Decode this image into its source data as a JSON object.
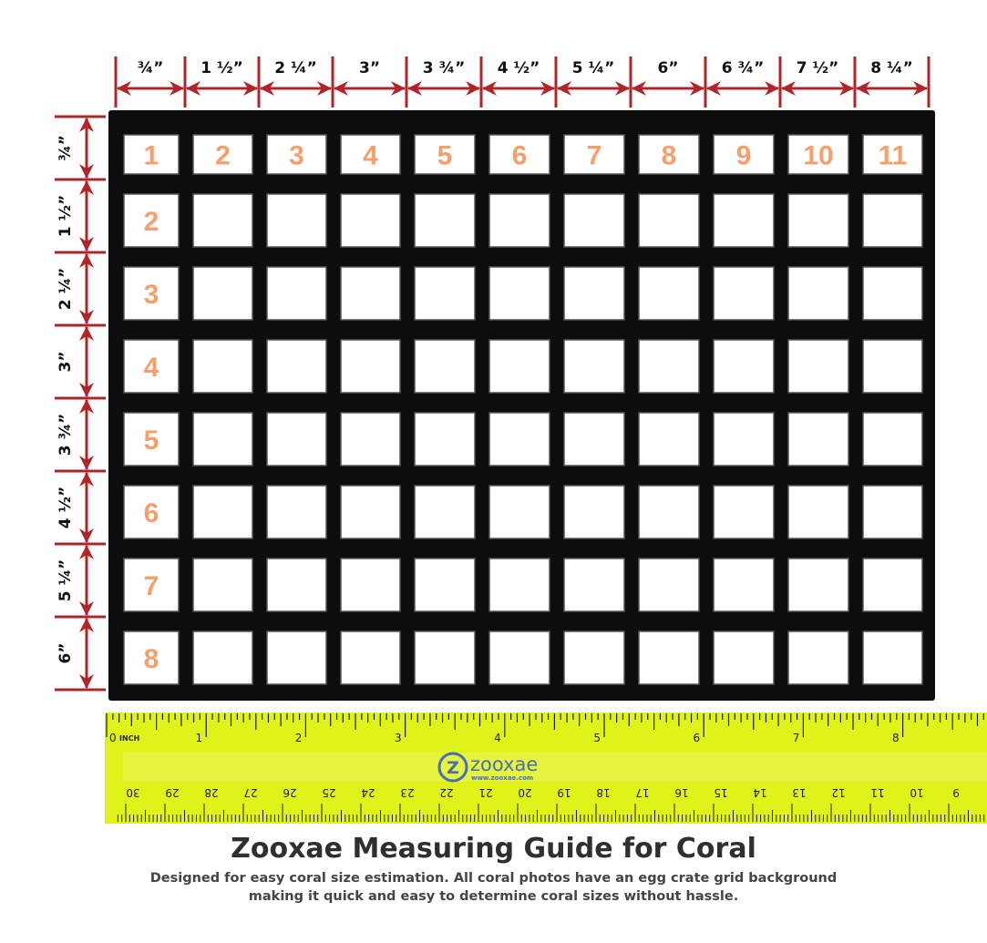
{
  "column_labels": [
    "¾”",
    "1 ½”",
    "2 ¼”",
    "3”",
    "3 ¾”",
    "4 ½”",
    "5 ¼”",
    "6”",
    "6 ¾”",
    "7 ½”",
    "8 ¼”"
  ],
  "row_labels": [
    "¾”",
    "1 ½”",
    "2 ¼”",
    "3”",
    "3 ¾”",
    "4 ½”",
    "5 ¼”",
    "6”"
  ],
  "column_numbers": [
    "1",
    "2",
    "3",
    "4",
    "5",
    "6",
    "7",
    "8",
    "9",
    "10",
    "11"
  ],
  "row_numbers": [
    "1",
    "2",
    "3",
    "4",
    "5",
    "6",
    "7",
    "8"
  ],
  "ruler": {
    "inch_label": "INCH",
    "inch_numbers": [
      "0",
      "1",
      "2",
      "3",
      "4",
      "5",
      "6",
      "7",
      "8"
    ],
    "cm_numbers": [
      "30",
      "29",
      "28",
      "27",
      "26",
      "25",
      "24",
      "23",
      "22",
      "21",
      "20",
      "19",
      "18",
      "17",
      "16",
      "15",
      "14",
      "13",
      "12",
      "11",
      "10",
      "9"
    ],
    "brand": "zooxae",
    "brand_url": "www.zooxae.com",
    "logo_letter": "Z"
  },
  "title": "Zooxae Measuring Guide for Coral",
  "subtitle_line1": "Designed for easy coral size estimation. All coral photos have an egg crate grid background",
  "subtitle_line2": "making it quick and easy to determine coral sizes without hassle.",
  "colors": {
    "arrow": "#b0252a",
    "number": "#f5a06c",
    "grid": "#0d0d0d",
    "ruler": "#dff21a",
    "ruler_text": "#222",
    "brand": "#4a6fb0"
  }
}
